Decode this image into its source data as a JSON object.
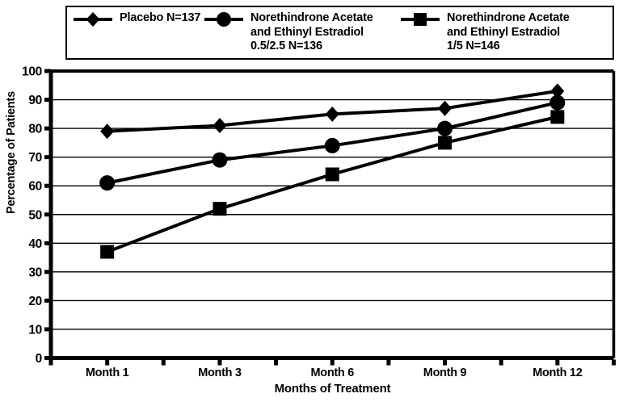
{
  "figure": {
    "background": "#ffffff",
    "ink": "#000000"
  },
  "legend": {
    "items": [
      {
        "marker": "diamond",
        "lines": [
          "Placebo N=137"
        ]
      },
      {
        "marker": "circle",
        "lines": [
          "Norethindrone Acetate",
          "and Ethinyl Estradiol",
          "0.5/2.5 N=136"
        ]
      },
      {
        "marker": "square",
        "lines": [
          "Norethindrone Acetate",
          "and Ethinyl Estradiol",
          "1/5 N=146"
        ]
      }
    ]
  },
  "chart_data": {
    "type": "line",
    "categories": [
      "Month 1",
      "Month 3",
      "Month 6",
      "Month 9",
      "Month 12"
    ],
    "series": [
      {
        "name": "Placebo N=137",
        "marker": "diamond",
        "color": "#000000",
        "values": [
          79,
          81,
          85,
          87,
          93
        ]
      },
      {
        "name": "Norethindrone Acetate and Ethinyl Estradiol 0.5/2.5 N=136",
        "marker": "circle",
        "color": "#000000",
        "values": [
          61,
          69,
          74,
          80,
          89
        ]
      },
      {
        "name": "Norethindrone Acetate and Ethinyl Estradiol 1/5 N=146",
        "marker": "square",
        "color": "#000000",
        "values": [
          37,
          52,
          64,
          75,
          84
        ]
      }
    ],
    "xlabel": "Months of Treatment",
    "ylabel": "Percentage of Patients",
    "ylim": [
      0,
      100
    ],
    "ytick_step": 10,
    "grid": true,
    "legend_position": "top"
  }
}
